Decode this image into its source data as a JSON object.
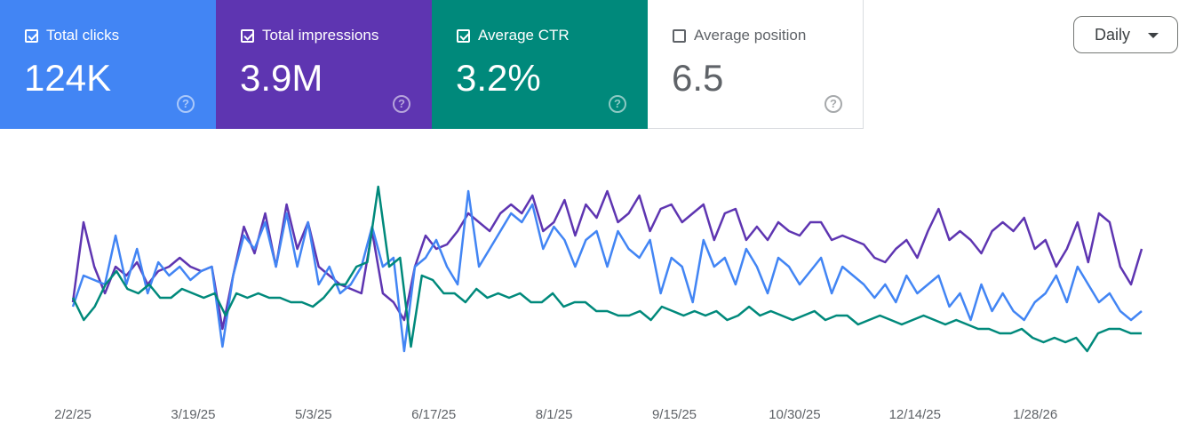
{
  "metrics": [
    {
      "label": "Total clicks",
      "value": "124K",
      "checked": true,
      "color": "#4285f4"
    },
    {
      "label": "Total impressions",
      "value": "3.9M",
      "checked": true,
      "color": "#5e35b1"
    },
    {
      "label": "Average CTR",
      "value": "3.2%",
      "checked": true,
      "color": "#00897b"
    },
    {
      "label": "Average position",
      "value": "6.5",
      "checked": false,
      "color": "#ffffff"
    }
  ],
  "help_icon": "?",
  "granularity": {
    "selected": "Daily",
    "icon": "caret-down-icon"
  },
  "chart_data": {
    "type": "line",
    "x_ticks": [
      "2/2/25",
      "3/19/25",
      "5/3/25",
      "6/17/25",
      "8/1/25",
      "9/15/25",
      "10/30/25",
      "12/14/25",
      "1/28/26"
    ],
    "y_axis": "hidden (each series independently scaled)",
    "grid": false,
    "series": [
      {
        "name": "Total impressions",
        "color": "#5e35b1",
        "values": [
          100,
          190,
          140,
          110,
          140,
          130,
          145,
          120,
          135,
          140,
          150,
          140,
          135,
          140,
          70,
          130,
          185,
          155,
          200,
          140,
          210,
          160,
          190,
          140,
          130,
          120,
          115,
          110,
          180,
          110,
          100,
          80,
          140,
          175,
          160,
          165,
          180,
          200,
          190,
          180,
          200,
          210,
          200,
          220,
          180,
          190,
          215,
          175,
          210,
          195,
          225,
          190,
          200,
          220,
          180,
          205,
          210,
          190,
          200,
          210,
          170,
          200,
          205,
          170,
          185,
          170,
          190,
          180,
          175,
          190,
          190,
          170,
          175,
          170,
          165,
          150,
          145,
          160,
          170,
          150,
          180,
          205,
          170,
          180,
          170,
          155,
          180,
          190,
          180,
          195,
          160,
          170,
          140,
          160,
          190,
          145,
          200,
          190,
          140,
          120,
          160
        ]
      },
      {
        "name": "Total clicks",
        "color": "#4285f4",
        "values": [
          95,
          130,
          125,
          120,
          175,
          120,
          160,
          110,
          145,
          130,
          140,
          125,
          135,
          140,
          50,
          130,
          175,
          160,
          190,
          140,
          200,
          140,
          190,
          120,
          140,
          110,
          120,
          140,
          185,
          140,
          150,
          45,
          140,
          150,
          170,
          140,
          120,
          225,
          140,
          160,
          180,
          200,
          190,
          210,
          160,
          185,
          170,
          140,
          170,
          180,
          140,
          180,
          160,
          150,
          170,
          110,
          150,
          140,
          100,
          170,
          140,
          150,
          120,
          160,
          140,
          110,
          150,
          140,
          120,
          135,
          150,
          110,
          140,
          130,
          120,
          105,
          120,
          100,
          130,
          110,
          120,
          130,
          95,
          110,
          80,
          120,
          90,
          110,
          90,
          80,
          100,
          110,
          130,
          100,
          140,
          120,
          100,
          110,
          90,
          80,
          90
        ]
      },
      {
        "name": "Average CTR",
        "color": "#00897b",
        "values": [
          105,
          80,
          95,
          120,
          135,
          115,
          110,
          120,
          105,
          105,
          115,
          110,
          105,
          110,
          85,
          110,
          105,
          110,
          105,
          105,
          100,
          100,
          95,
          105,
          120,
          120,
          140,
          145,
          230,
          140,
          150,
          50,
          130,
          125,
          110,
          110,
          100,
          115,
          105,
          110,
          105,
          110,
          100,
          100,
          110,
          95,
          100,
          100,
          90,
          90,
          85,
          85,
          90,
          80,
          95,
          90,
          85,
          90,
          85,
          90,
          80,
          85,
          95,
          85,
          90,
          85,
          80,
          85,
          90,
          80,
          85,
          85,
          75,
          80,
          85,
          80,
          75,
          80,
          85,
          80,
          75,
          80,
          75,
          70,
          70,
          65,
          65,
          70,
          60,
          55,
          60,
          55,
          60,
          45,
          65,
          70,
          70,
          65,
          65
        ]
      }
    ]
  }
}
